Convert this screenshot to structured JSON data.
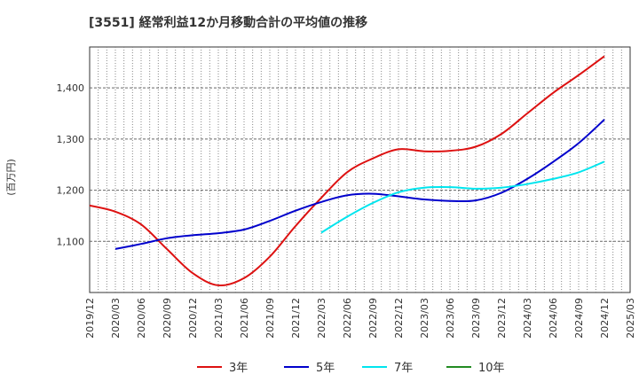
{
  "chart_data": {
    "type": "line",
    "title": "[3551]  経常利益12か月移動合計の平均値の推移",
    "ylabel": "(百万円)",
    "xlabel": "",
    "ylim": [
      1000,
      1480
    ],
    "yticks": [
      1100,
      1200,
      1300,
      1400
    ],
    "ytick_labels": [
      "1,100",
      "1,200",
      "1,300",
      "1,400"
    ],
    "x_tick_labels": [
      "2019/12",
      "2020/03",
      "2020/06",
      "2020/09",
      "2020/12",
      "2021/03",
      "2021/06",
      "2021/09",
      "2021/12",
      "2022/03",
      "2022/06",
      "2022/09",
      "2022/12",
      "2023/03",
      "2023/06",
      "2023/09",
      "2023/12",
      "2024/03",
      "2024/06",
      "2024/09",
      "2024/12",
      "2025/03"
    ],
    "grid": true,
    "legend_position": "bottom",
    "series": [
      {
        "name": "3年",
        "color": "#dd1111",
        "points": [
          [
            "2019/12",
            1170
          ],
          [
            "2020/03",
            1158
          ],
          [
            "2020/06",
            1133
          ],
          [
            "2020/09",
            1085
          ],
          [
            "2020/12",
            1038
          ],
          [
            "2021/03",
            1014
          ],
          [
            "2021/06",
            1028
          ],
          [
            "2021/09",
            1070
          ],
          [
            "2021/12",
            1130
          ],
          [
            "2022/03",
            1185
          ],
          [
            "2022/06",
            1235
          ],
          [
            "2022/09",
            1262
          ],
          [
            "2022/12",
            1280
          ],
          [
            "2023/03",
            1276
          ],
          [
            "2023/06",
            1277
          ],
          [
            "2023/09",
            1285
          ],
          [
            "2023/12",
            1310
          ],
          [
            "2024/03",
            1350
          ],
          [
            "2024/06",
            1390
          ],
          [
            "2024/09",
            1425
          ],
          [
            "2024/12",
            1462
          ]
        ]
      },
      {
        "name": "5年",
        "color": "#0000cc",
        "points": [
          [
            "2020/03",
            1085
          ],
          [
            "2020/06",
            1095
          ],
          [
            "2020/09",
            1106
          ],
          [
            "2020/12",
            1112
          ],
          [
            "2021/03",
            1116
          ],
          [
            "2021/06",
            1123
          ],
          [
            "2021/09",
            1140
          ],
          [
            "2021/12",
            1160
          ],
          [
            "2022/03",
            1177
          ],
          [
            "2022/06",
            1190
          ],
          [
            "2022/09",
            1193
          ],
          [
            "2022/12",
            1188
          ],
          [
            "2023/03",
            1182
          ],
          [
            "2023/06",
            1179
          ],
          [
            "2023/09",
            1180
          ],
          [
            "2023/12",
            1195
          ],
          [
            "2024/03",
            1222
          ],
          [
            "2024/06",
            1255
          ],
          [
            "2024/09",
            1292
          ],
          [
            "2024/12",
            1338
          ]
        ]
      },
      {
        "name": "7年",
        "color": "#00e5ee",
        "points": [
          [
            "2022/03",
            1117
          ],
          [
            "2022/06",
            1148
          ],
          [
            "2022/09",
            1175
          ],
          [
            "2022/12",
            1196
          ],
          [
            "2023/03",
            1205
          ],
          [
            "2023/06",
            1206
          ],
          [
            "2023/09",
            1203
          ],
          [
            "2023/12",
            1205
          ],
          [
            "2024/03",
            1212
          ],
          [
            "2024/06",
            1222
          ],
          [
            "2024/09",
            1235
          ],
          [
            "2024/12",
            1256
          ]
        ]
      },
      {
        "name": "10年",
        "color": "#228b22",
        "points": []
      }
    ]
  }
}
